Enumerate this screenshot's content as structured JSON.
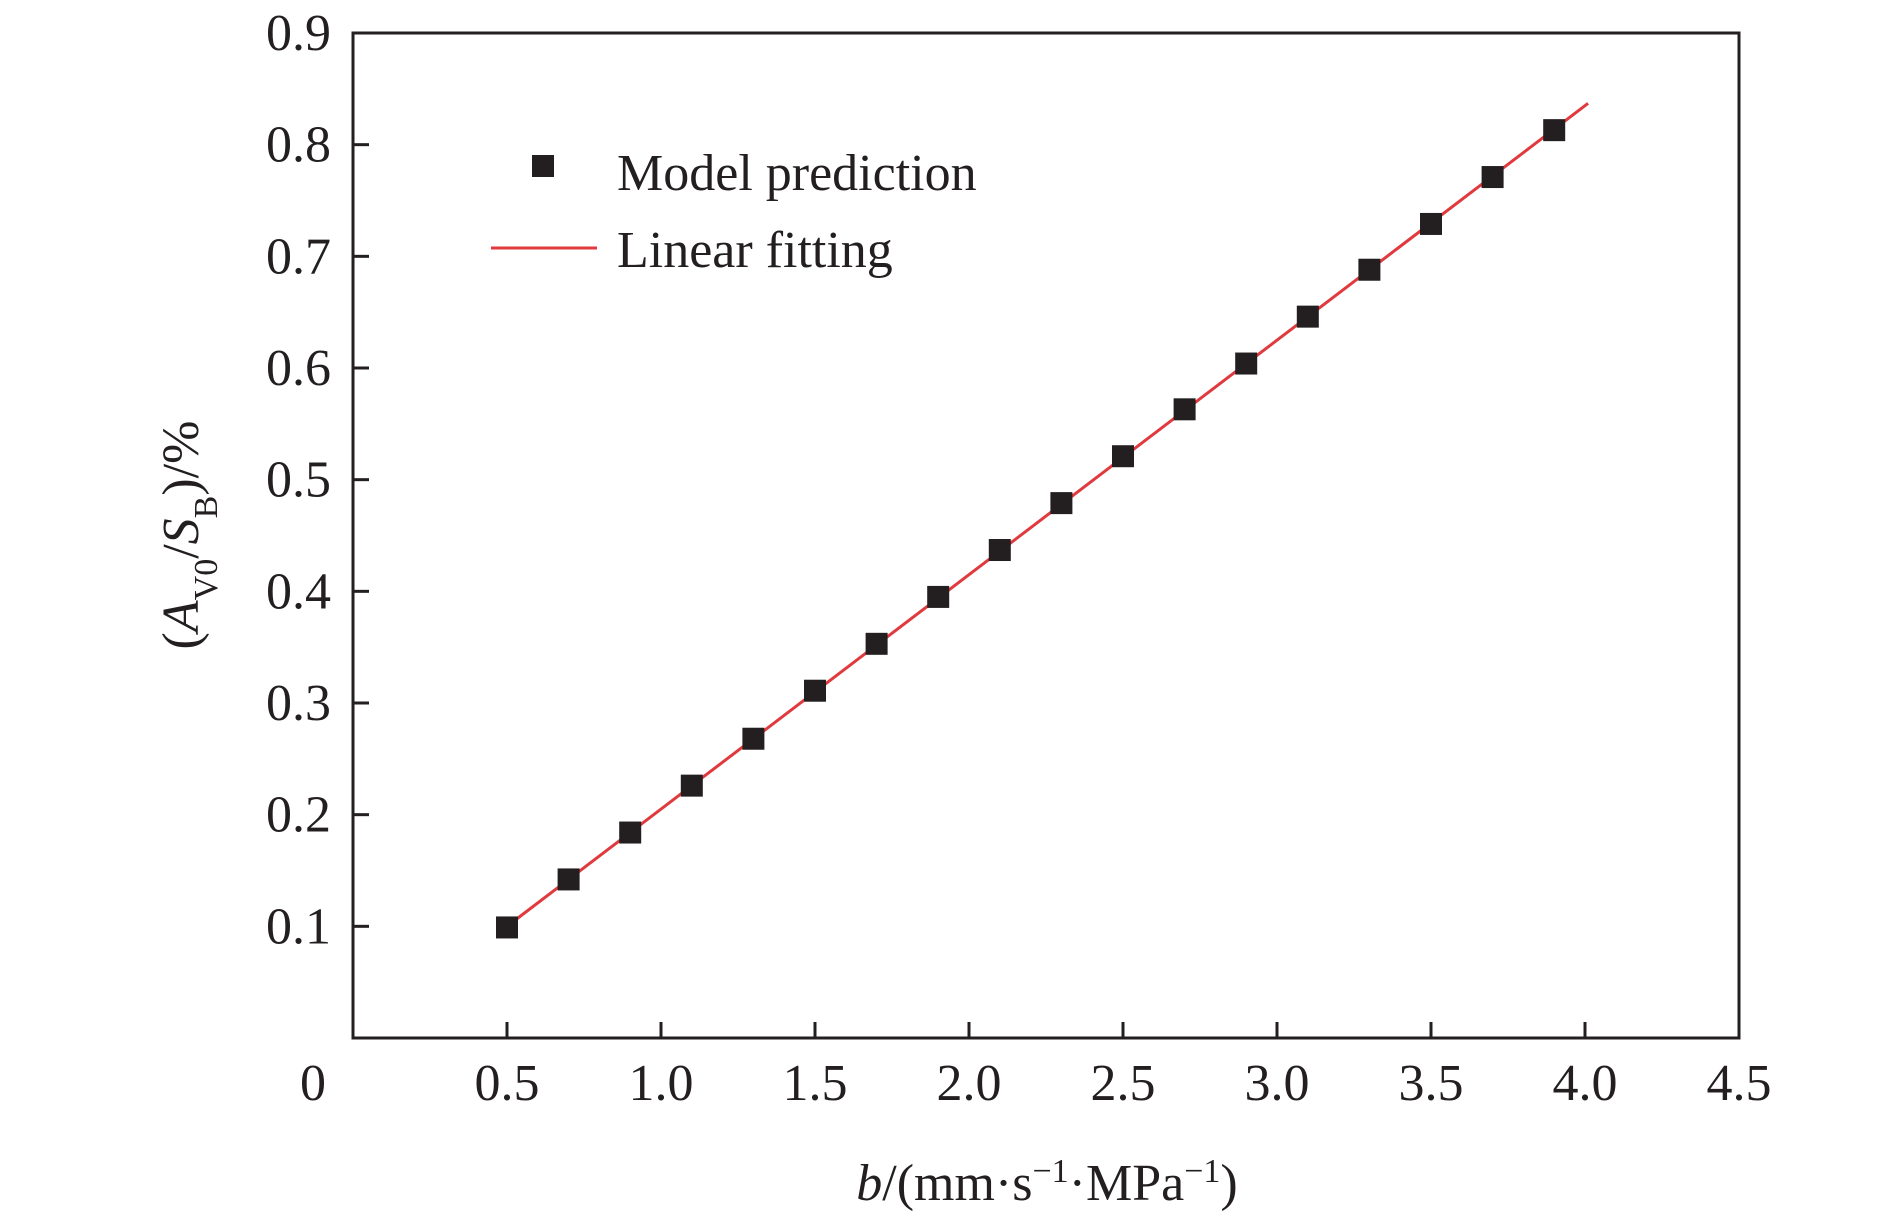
{
  "chart_data": {
    "type": "scatter",
    "xlim": [
      0,
      4.5
    ],
    "ylim": [
      0,
      0.9
    ],
    "x_ticks": [
      {
        "value": 0,
        "label": "0"
      },
      {
        "value": 0.5,
        "label": "0.5"
      },
      {
        "value": 1.0,
        "label": "1.0"
      },
      {
        "value": 1.5,
        "label": "1.5"
      },
      {
        "value": 2.0,
        "label": "2.0"
      },
      {
        "value": 2.5,
        "label": "2.5"
      },
      {
        "value": 3.0,
        "label": "3.0"
      },
      {
        "value": 3.5,
        "label": "3.5"
      },
      {
        "value": 4.0,
        "label": "4.0"
      },
      {
        "value": 4.5,
        "label": "4.5"
      }
    ],
    "y_ticks": [
      {
        "value": 0.1,
        "label": "0.1"
      },
      {
        "value": 0.2,
        "label": "0.2"
      },
      {
        "value": 0.3,
        "label": "0.3"
      },
      {
        "value": 0.4,
        "label": "0.4"
      },
      {
        "value": 0.5,
        "label": "0.5"
      },
      {
        "value": 0.6,
        "label": "0.6"
      },
      {
        "value": 0.7,
        "label": "0.7"
      },
      {
        "value": 0.8,
        "label": "0.8"
      },
      {
        "value": 0.9,
        "label": "0.9"
      }
    ],
    "xlabel": {
      "italic": "b",
      "text": "/(mm·s",
      "sup1": "−1",
      "mid": "·MPa",
      "sup2": "−1",
      "end": ")"
    },
    "ylabel": {
      "open": "(",
      "A": "A",
      "subA": "V0",
      "slash": "/",
      "S": "S",
      "subS": "B",
      "close": ")/%"
    },
    "legend_position": "top-left",
    "grid": false,
    "series": [
      {
        "name": "Model prediction",
        "kind": "scatter",
        "marker": "square",
        "color": "#231f20",
        "x": [
          0.5,
          0.7,
          0.9,
          1.1,
          1.3,
          1.5,
          1.7,
          1.9,
          2.1,
          2.3,
          2.5,
          2.7,
          2.9,
          3.1,
          3.3,
          3.5,
          3.7,
          3.9
        ],
        "y": [
          0.099,
          0.142,
          0.184,
          0.226,
          0.268,
          0.311,
          0.353,
          0.395,
          0.437,
          0.479,
          0.521,
          0.563,
          0.604,
          0.646,
          0.688,
          0.729,
          0.771,
          0.813
        ]
      },
      {
        "name": "Linear fitting",
        "kind": "line",
        "color": "#e03a3e",
        "x": [
          0.5,
          4.01
        ],
        "y": [
          0.1,
          0.837
        ]
      }
    ]
  }
}
